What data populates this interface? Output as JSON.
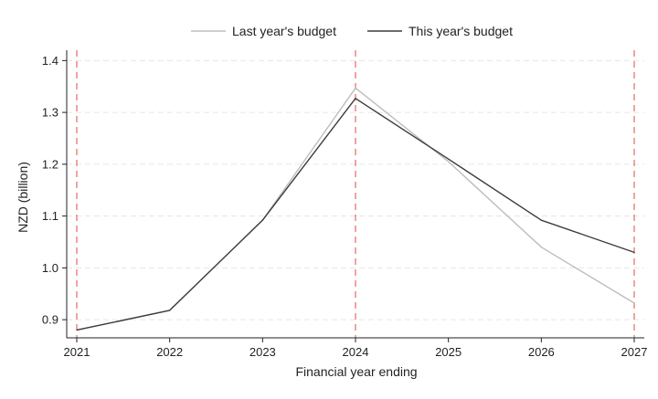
{
  "chart_data": {
    "type": "line",
    "title": "",
    "xlabel": "Financial year ending",
    "ylabel": "NZD (billion)",
    "x": [
      2021,
      2022,
      2023,
      2024,
      2025,
      2026,
      2027
    ],
    "x_tick_labels": [
      "2021",
      "2022",
      "2023",
      "2024",
      "2025",
      "2026",
      "2027"
    ],
    "y_ticks": [
      0.9,
      1.0,
      1.1,
      1.2,
      1.3,
      1.4
    ],
    "y_tick_labels": [
      "0.9",
      "1.0",
      "1.1",
      "1.2",
      "1.3",
      "1.4"
    ],
    "xlim": [
      2021,
      2027
    ],
    "ylim": [
      0.865,
      1.42
    ],
    "grid": "horizontal dashed",
    "legend_position": "top",
    "reference_lines_x": [
      2021,
      2024,
      2027
    ],
    "reference_line_color": "#e8736b",
    "series": [
      {
        "name": "Last year's budget",
        "color": "#bdbdbd",
        "values": [
          0.88,
          0.918,
          1.092,
          1.347,
          1.205,
          1.04,
          0.932
        ]
      },
      {
        "name": "This year's budget",
        "color": "#3c3c3c",
        "values": [
          0.88,
          0.918,
          1.092,
          1.327,
          1.21,
          1.092,
          1.03
        ]
      }
    ]
  }
}
